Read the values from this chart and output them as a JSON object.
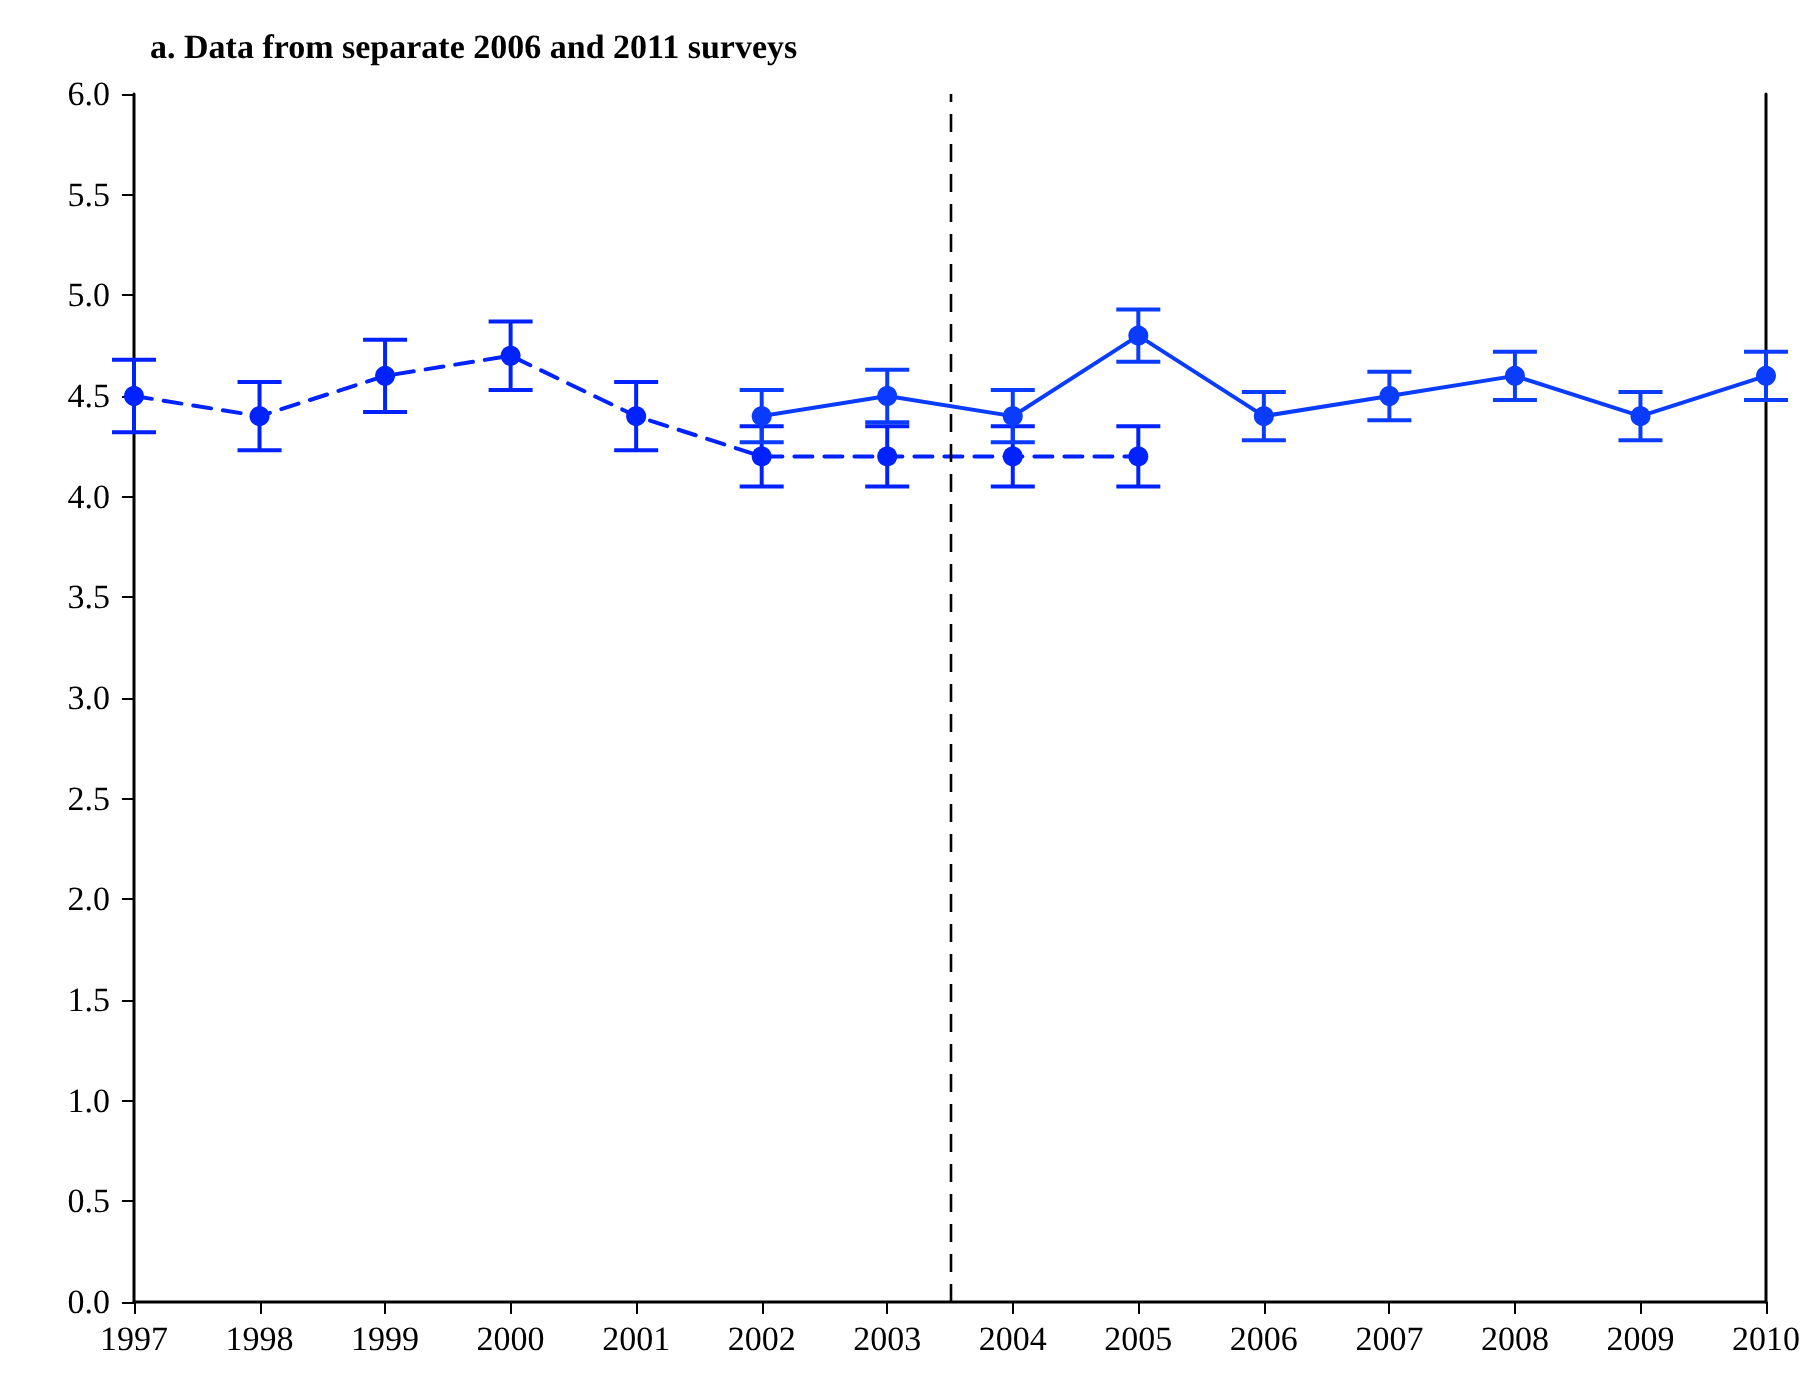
{
  "chart_data": {
    "type": "line",
    "title": "a. Data from separate 2006 and 2011 surveys",
    "series": [
      {
        "color": "#0022ff",
        "line_style": "dashed",
        "x": [
          1997,
          1998,
          1999,
          2000,
          2001,
          2002,
          2003,
          2004,
          2005
        ],
        "values": [
          4.5,
          4.4,
          4.6,
          4.7,
          4.4,
          4.2,
          4.2,
          4.2,
          4.2
        ],
        "errors": [
          0.18,
          0.17,
          0.18,
          0.17,
          0.17,
          0.15,
          0.15,
          0.15,
          0.15
        ]
      },
      {
        "color": "#0a3cff",
        "line_style": "solid",
        "x": [
          2002,
          2003,
          2004,
          2005,
          2006,
          2007,
          2008,
          2009,
          2010
        ],
        "values": [
          4.4,
          4.5,
          4.4,
          4.8,
          4.4,
          4.5,
          4.6,
          4.4,
          4.6
        ],
        "errors": [
          0.13,
          0.13,
          0.13,
          0.13,
          0.12,
          0.12,
          0.12,
          0.12,
          0.12
        ]
      }
    ],
    "marker": "circle",
    "xlim": [
      1997,
      2010
    ],
    "xticks": [
      1997,
      1998,
      1999,
      2000,
      2001,
      2002,
      2003,
      2004,
      2005,
      2006,
      2007,
      2008,
      2009,
      2010
    ],
    "ylim": [
      0,
      6
    ],
    "yticks": [
      {
        "value": 0,
        "label": "0.0"
      },
      {
        "value": 0.5,
        "label": "0.5"
      },
      {
        "value": 1,
        "label": "1.0"
      },
      {
        "value": 1.5,
        "label": "1.5"
      },
      {
        "value": 2,
        "label": "2.0"
      },
      {
        "value": 2.5,
        "label": "2.5"
      },
      {
        "value": 3,
        "label": "3.0"
      },
      {
        "value": 3.5,
        "label": "3.5"
      },
      {
        "value": 4,
        "label": "4.0"
      },
      {
        "value": 4.5,
        "label": "4.5"
      },
      {
        "value": 5,
        "label": "5.0"
      },
      {
        "value": 5.5,
        "label": "5.5"
      },
      {
        "value": 6,
        "label": "6.0"
      }
    ],
    "ref_lines": [
      {
        "axis": "x",
        "value": 2003.5,
        "color": "#000000",
        "line_style": "dashed"
      }
    ]
  }
}
